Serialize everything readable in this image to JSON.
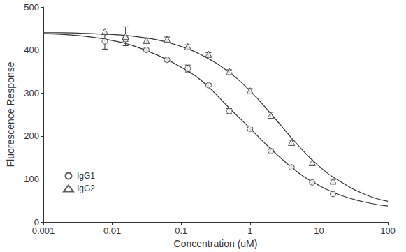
{
  "chart_data": {
    "type": "scatter",
    "xlabel": "Concentration (uM)",
    "ylabel": "Fluorescence Response",
    "log": "x",
    "grid": false,
    "legend": "lower left",
    "xlim": [
      0.001,
      100
    ],
    "xticks": [
      0.001,
      0.01,
      0.1,
      1,
      10,
      100
    ],
    "ylim": [
      0,
      500
    ],
    "yticks": [
      0,
      100,
      200,
      300,
      400,
      500
    ],
    "series": [
      {
        "name": "IgG1",
        "color": "#333333",
        "marker": "circle",
        "line_style": "solid",
        "x": [
          0.0078,
          0.0156,
          0.03125,
          0.0625,
          0.125,
          0.25,
          0.5,
          1,
          2,
          4,
          8,
          16
        ],
        "values": [
          420,
          425,
          400,
          377,
          357,
          318,
          258,
          217,
          165,
          127,
          92,
          65
        ],
        "errors": [
          18,
          5,
          4,
          4,
          8,
          4,
          6,
          3,
          3,
          3,
          3,
          3
        ],
        "fit": {
          "x": [
            0.001,
            0.002,
            0.005,
            0.01,
            0.02,
            0.05,
            0.1,
            0.2,
            0.5,
            1,
            2,
            5,
            10,
            20,
            50,
            100
          ],
          "values": [
            438,
            436,
            430,
            422,
            410,
            385,
            360,
            328,
            265,
            218,
            170,
            115,
            85,
            63,
            45,
            37
          ]
        }
      },
      {
        "name": "IgG2",
        "color": "#333333",
        "marker": "triangle",
        "line_style": "solid",
        "x": [
          0.0078,
          0.0156,
          0.03125,
          0.0625,
          0.125,
          0.25,
          0.5,
          1,
          2,
          4,
          8,
          16
        ],
        "values": [
          443,
          432,
          422,
          425,
          408,
          390,
          350,
          305,
          248,
          185,
          138,
          95
        ],
        "errors": [
          6,
          22,
          5,
          5,
          4,
          4,
          4,
          5,
          7,
          5,
          4,
          4
        ],
        "fit": {
          "x": [
            0.001,
            0.002,
            0.005,
            0.01,
            0.02,
            0.05,
            0.1,
            0.2,
            0.5,
            1,
            2,
            5,
            10,
            20,
            50,
            100
          ],
          "values": [
            440,
            440,
            438,
            436,
            432,
            422,
            408,
            388,
            348,
            305,
            252,
            178,
            130,
            95,
            62,
            48
          ]
        }
      }
    ]
  }
}
